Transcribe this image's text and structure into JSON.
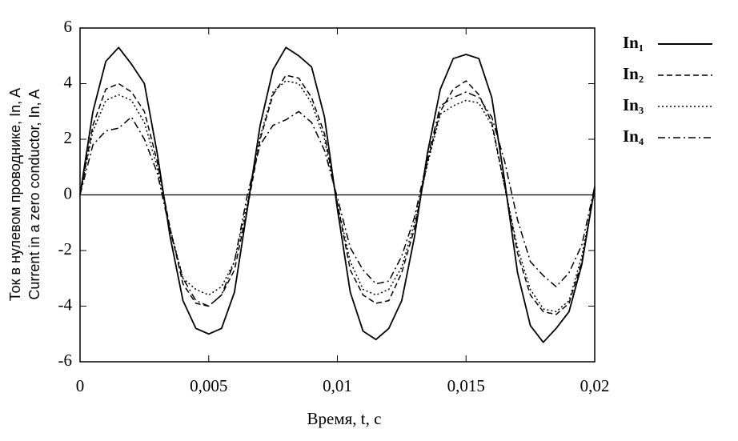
{
  "chart_data": {
    "type": "line",
    "xlabel": "Время, t, с",
    "ylabel": [
      "Ток  в нулевом проводнике, In, A",
      "Current in a zero conductor, In, A"
    ],
    "x": [
      0,
      0.0005,
      0.001,
      0.0015,
      0.002,
      0.0025,
      0.003,
      0.0035,
      0.004,
      0.0045,
      0.005,
      0.0055,
      0.006,
      0.0065,
      0.007,
      0.0075,
      0.008,
      0.0085,
      0.009,
      0.0095,
      0.01,
      0.0105,
      0.011,
      0.0115,
      0.012,
      0.0125,
      0.013,
      0.0135,
      0.014,
      0.0145,
      0.015,
      0.0155,
      0.016,
      0.0165,
      0.017,
      0.0175,
      0.018,
      0.0185,
      0.019,
      0.0195,
      0.02
    ],
    "series": [
      {
        "name": "In₁",
        "color": "#000000",
        "dash": "solid",
        "values": [
          0,
          3.0,
          4.8,
          5.3,
          4.7,
          4.0,
          1.5,
          -1.5,
          -3.8,
          -4.8,
          -5.0,
          -4.8,
          -3.5,
          -0.5,
          2.5,
          4.5,
          5.3,
          5.0,
          4.6,
          2.8,
          -0.5,
          -3.5,
          -4.9,
          -5.2,
          -4.8,
          -3.8,
          -1.5,
          1.5,
          3.8,
          4.9,
          5.05,
          4.9,
          3.5,
          0.5,
          -2.8,
          -4.7,
          -5.3,
          -4.8,
          -4.2,
          -2.5,
          0.3
        ]
      },
      {
        "name": "In₂",
        "color": "#000000",
        "dash": "dashed",
        "values": [
          0,
          2.5,
          3.8,
          4.0,
          3.7,
          3.0,
          1.2,
          -1.2,
          -3.2,
          -3.9,
          -4.0,
          -3.6,
          -2.7,
          -0.5,
          2.0,
          3.6,
          4.3,
          4.2,
          3.5,
          2.2,
          -0.3,
          -2.7,
          -3.6,
          -3.9,
          -3.8,
          -2.8,
          -1.2,
          1.2,
          3.0,
          3.8,
          4.1,
          3.6,
          2.6,
          0.3,
          -2.1,
          -3.6,
          -4.2,
          -4.3,
          -3.9,
          -2.4,
          0.2
        ]
      },
      {
        "name": "In₃",
        "color": "#000000",
        "dash": "dotted",
        "values": [
          0,
          2.3,
          3.4,
          3.6,
          3.4,
          2.6,
          1.0,
          -1.2,
          -3.0,
          -3.4,
          -3.6,
          -3.3,
          -2.4,
          -0.3,
          2.1,
          3.7,
          4.1,
          4.0,
          3.3,
          2.0,
          -0.3,
          -2.4,
          -3.4,
          -3.6,
          -3.4,
          -2.6,
          -1.0,
          1.1,
          2.9,
          3.2,
          3.4,
          3.3,
          2.5,
          0.3,
          -1.9,
          -3.4,
          -4.1,
          -4.2,
          -3.8,
          -2.2,
          0.2
        ]
      },
      {
        "name": "In₄",
        "color": "#000000",
        "dash": "dashdot",
        "values": [
          0,
          1.8,
          2.3,
          2.4,
          2.8,
          2.0,
          0.8,
          -1.3,
          -3.0,
          -3.8,
          -4.0,
          -3.6,
          -2.4,
          0.0,
          1.8,
          2.5,
          2.7,
          3.0,
          2.6,
          1.6,
          -0.1,
          -1.9,
          -2.7,
          -3.2,
          -3.1,
          -2.2,
          -0.8,
          1.3,
          3.2,
          3.5,
          3.7,
          3.5,
          2.8,
          1.2,
          -0.9,
          -2.4,
          -2.9,
          -3.3,
          -2.8,
          -1.8,
          0.3
        ]
      }
    ],
    "xlim": [
      0,
      0.02
    ],
    "xticks": [
      0,
      {
        "value": 0.005,
        "label": "0,005"
      },
      {
        "value": 0.01,
        "label": "0,01"
      },
      {
        "value": 0.015,
        "label": "0,015"
      },
      {
        "value": 0.02,
        "label": "0,02"
      }
    ],
    "ylim": [
      -6,
      6
    ],
    "yticks": [
      -6,
      -4,
      -2,
      0,
      2,
      4,
      6
    ],
    "grid": false,
    "legend": "outside-right"
  }
}
